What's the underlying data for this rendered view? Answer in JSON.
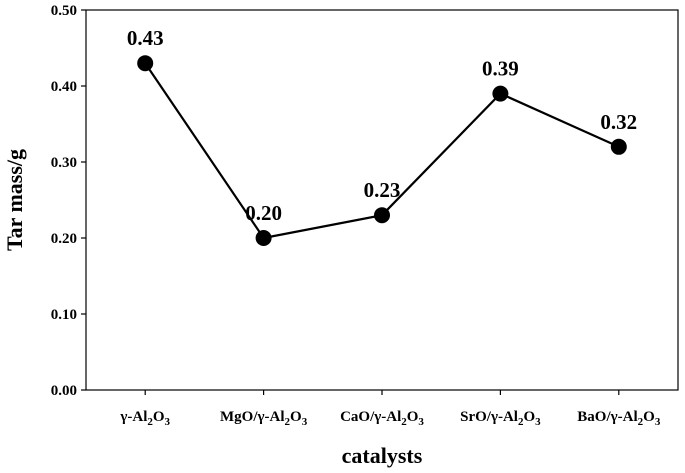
{
  "chart_data": {
    "type": "line",
    "title": "",
    "xlabel": "catalysts",
    "ylabel": "Tar mass/g",
    "ylim": [
      0,
      0.5
    ],
    "yticks": [
      "0.00",
      "0.10",
      "0.20",
      "0.30",
      "0.40",
      "0.50"
    ],
    "categories": [
      {
        "pre": "γ-Al",
        "s1": "2",
        "mid": "O",
        "s2": "3"
      },
      {
        "pre": "MgO/γ-Al",
        "s1": "2",
        "mid": "O",
        "s2": "3"
      },
      {
        "pre": "CaO/γ-Al",
        "s1": "2",
        "mid": "O",
        "s2": "3"
      },
      {
        "pre": "SrO/γ-Al",
        "s1": "2",
        "mid": "O",
        "s2": "3"
      },
      {
        "pre": "BaO/γ-Al",
        "s1": "2",
        "mid": "O",
        "s2": "3"
      }
    ],
    "values": [
      0.43,
      0.2,
      0.23,
      0.39,
      0.32
    ],
    "data_labels": [
      "0.43",
      "0.20",
      "0.23",
      "0.39",
      "0.32"
    ],
    "grid": false,
    "legend": "none",
    "line_color": "#000000",
    "marker_color": "#000000"
  }
}
